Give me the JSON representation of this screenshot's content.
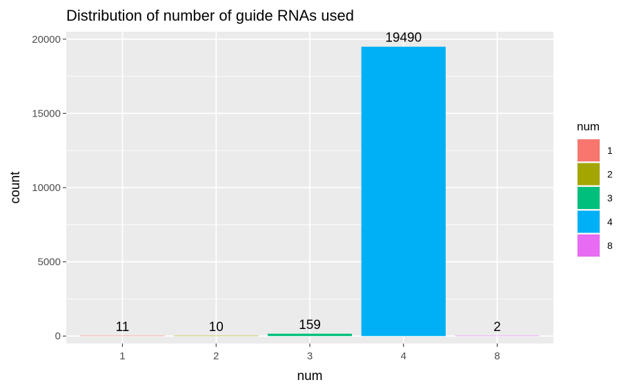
{
  "chart_data": {
    "type": "bar",
    "title": "Distribution of number of guide RNAs used",
    "xlabel": "num",
    "ylabel": "count",
    "categories": [
      "1",
      "2",
      "3",
      "4",
      "8"
    ],
    "values": [
      11,
      10,
      159,
      19490,
      2
    ],
    "data_labels": [
      "11",
      "10",
      "159",
      "19490",
      "2"
    ],
    "colors": [
      "#F8766D",
      "#A3A500",
      "#00BF7D",
      "#00B0F6",
      "#E76BF3"
    ],
    "ylim": [
      -500,
      20500
    ],
    "yticks": [
      0,
      5000,
      10000,
      15000,
      20000
    ],
    "ytick_labels": [
      "0",
      "5000",
      "10000",
      "15000",
      "20000"
    ],
    "grid": true,
    "legend": {
      "title": "num",
      "position": "right",
      "items": [
        "1",
        "2",
        "3",
        "4",
        "8"
      ]
    }
  }
}
